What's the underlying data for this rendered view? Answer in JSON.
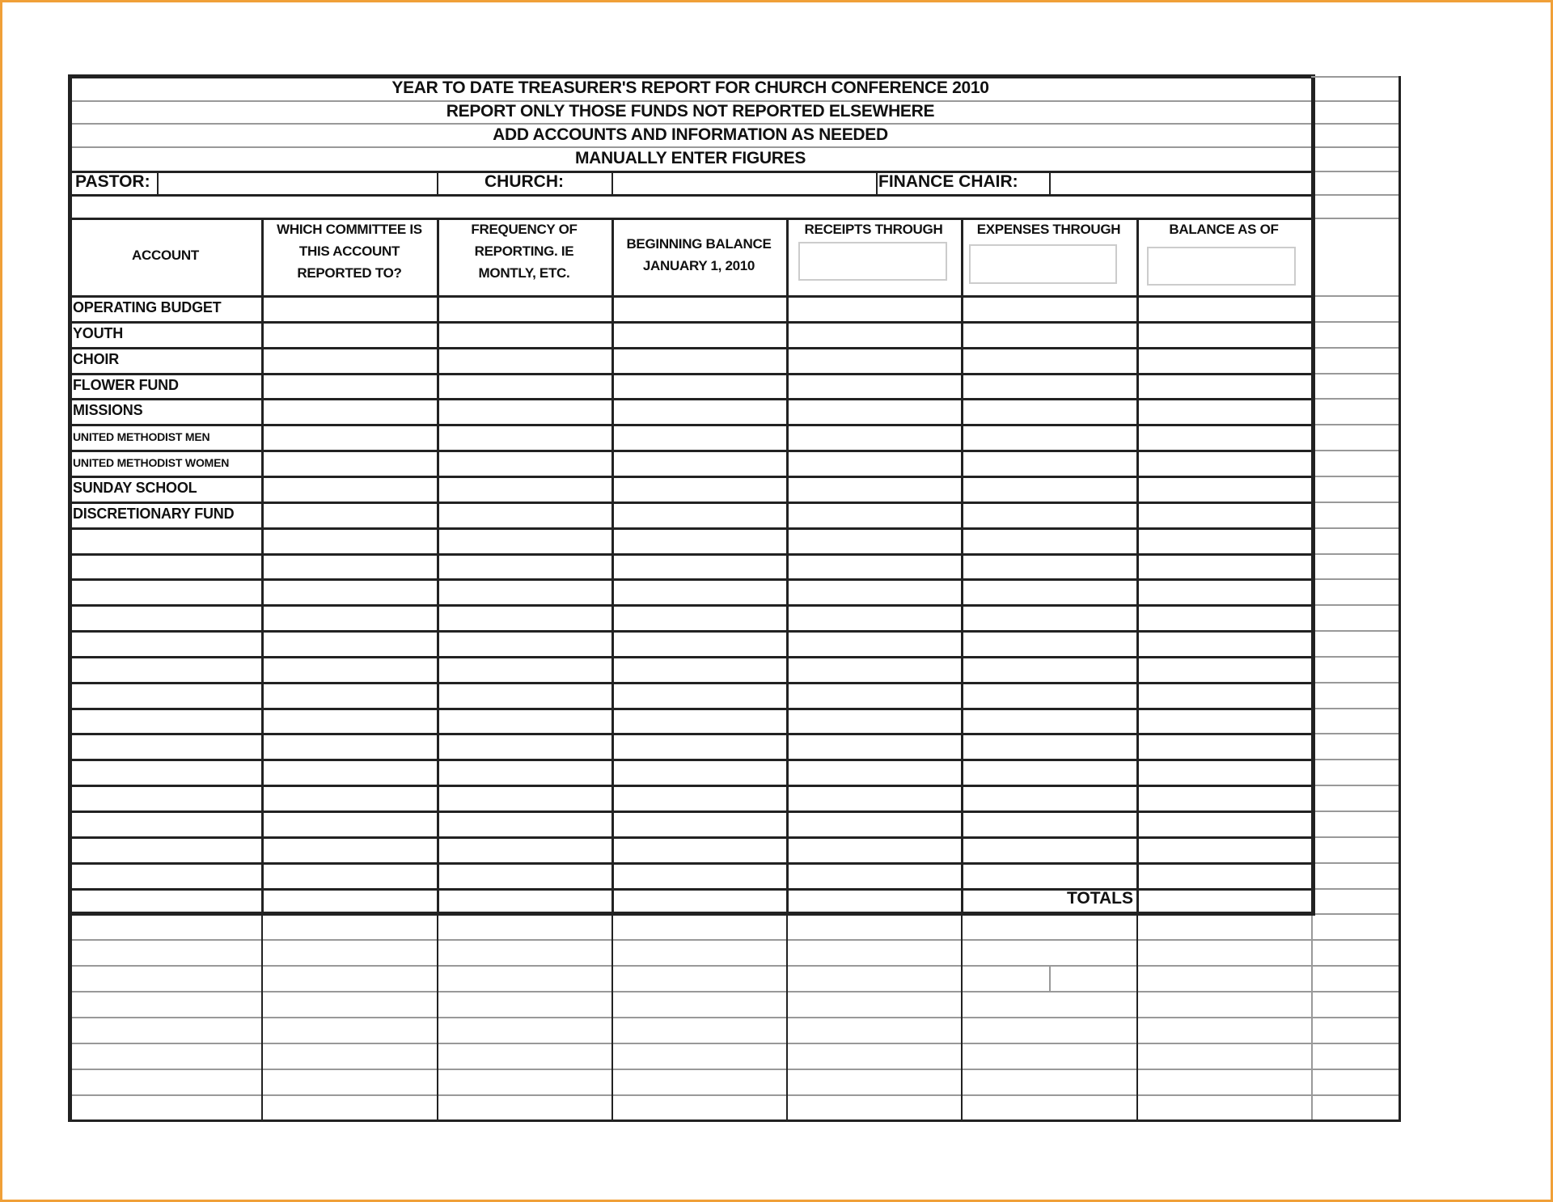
{
  "report": {
    "title_lines": [
      "YEAR TO DATE TREASURER'S REPORT FOR CHURCH CONFERENCE 2010",
      "REPORT ONLY THOSE FUNDS NOT REPORTED ELSEWHERE",
      "ADD ACCOUNTS AND INFORMATION AS NEEDED",
      "MANUALLY ENTER FIGURES"
    ],
    "info": {
      "pastor_label": "PASTOR:",
      "pastor_value": "",
      "church_label": "CHURCH:",
      "church_value": "",
      "finance_chair_label": "FINANCE CHAIR:",
      "finance_chair_value": ""
    },
    "columns": [
      "ACCOUNT",
      "WHICH COMMITTEE IS THIS ACCOUNT REPORTED TO?",
      "FREQUENCY OF REPORTING.  IE MONTLY, ETC.",
      "BEGINNING BALANCE JANUARY 1, 2010",
      "RECEIPTS THROUGH",
      "EXPENSES THROUGH",
      "BALANCE AS OF"
    ],
    "date_inputs": {
      "receipts_through": "",
      "expenses_through": "",
      "balance_as_of": ""
    },
    "accounts": [
      "OPERATING BUDGET",
      "YOUTH",
      "CHOIR",
      "FLOWER FUND",
      "MISSIONS",
      "UNITED METHODIST MEN",
      "UNITED METHODIST WOMEN",
      "SUNDAY SCHOOL",
      "DISCRETIONARY FUND"
    ],
    "totals_label": "TOTALS"
  },
  "colors": {
    "frame": "#f0a038",
    "grid": "#222222",
    "light_grid": "#999999"
  }
}
